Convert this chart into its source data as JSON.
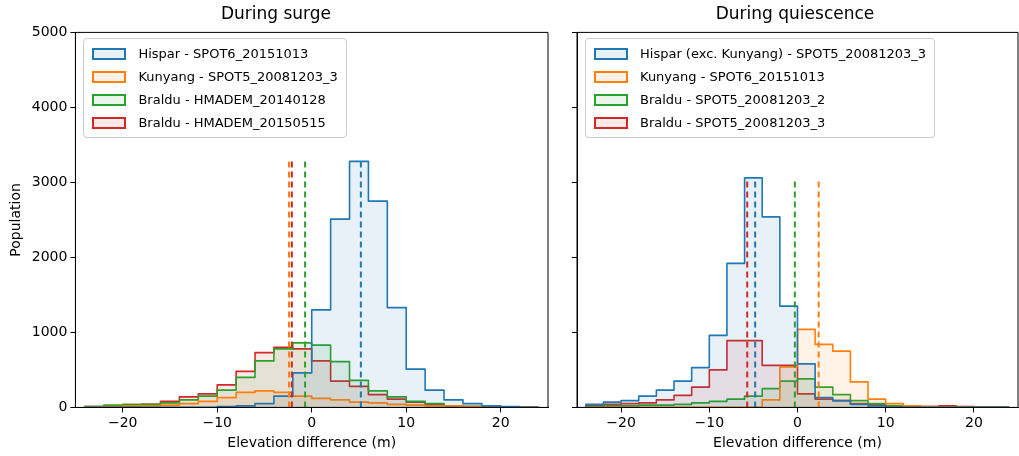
{
  "chart_data": [
    {
      "type": "histogram",
      "title": "During surge",
      "xlabel": "Elevation difference (m)",
      "ylabel": "Population",
      "legend": "top left",
      "grid": false,
      "bins": [
        -24,
        -22,
        -20,
        -18,
        -16,
        -14,
        -12,
        -10,
        -8,
        -6,
        -4,
        -2,
        0,
        2,
        4,
        6,
        8,
        10,
        12,
        14,
        16,
        18,
        20,
        22,
        24
      ],
      "series": [
        {
          "name": "Hispar - SPOT6_20151013",
          "color": "#1f77b4",
          "values": [
            0,
            0,
            0,
            0,
            0,
            0,
            0,
            10,
            20,
            50,
            150,
            460,
            1300,
            2510,
            3280,
            2750,
            1330,
            510,
            230,
            100,
            50,
            20,
            10,
            0
          ]
        },
        {
          "name": "Kunyang - SPOT5_20081203_3",
          "color": "#ff7f0e",
          "values": [
            0,
            10,
            20,
            20,
            30,
            50,
            80,
            130,
            200,
            220,
            200,
            150,
            120,
            100,
            70,
            60,
            40,
            30,
            20,
            20,
            10,
            10,
            0,
            0
          ]
        },
        {
          "name": "Braldu - HMADEM_20140128",
          "color": "#2ca02c",
          "values": [
            10,
            30,
            40,
            40,
            60,
            100,
            150,
            230,
            400,
            620,
            780,
            860,
            830,
            610,
            360,
            220,
            140,
            80,
            50,
            20,
            10,
            0,
            0,
            0
          ]
        },
        {
          "name": "Braldu - HMADEM_20150515",
          "color": "#d62728",
          "values": [
            10,
            20,
            20,
            40,
            80,
            140,
            180,
            300,
            480,
            730,
            800,
            780,
            620,
            350,
            280,
            170,
            110,
            70,
            40,
            20,
            10,
            0,
            0,
            0
          ]
        }
      ],
      "ref_lines": [
        {
          "axis": "x",
          "value": 5.2,
          "color": "#1f77b4",
          "line_style": "dashed"
        },
        {
          "axis": "x",
          "value": -2.4,
          "color": "#ff7f0e",
          "line_style": "dashed"
        },
        {
          "axis": "x",
          "value": -0.7,
          "color": "#2ca02c",
          "line_style": "dashed"
        },
        {
          "axis": "x",
          "value": -2.1,
          "color": "#d62728",
          "line_style": "dashed"
        }
      ],
      "xlim": [
        -25,
        25
      ],
      "xticks": [
        -20,
        -10,
        0,
        10,
        20
      ],
      "ylim": [
        0,
        5000
      ],
      "yticks": [
        0,
        1000,
        2000,
        3000,
        4000,
        5000
      ]
    },
    {
      "type": "histogram",
      "title": "During quiescence",
      "xlabel": "Elevation difference (m)",
      "legend": "top left",
      "grid": false,
      "tick_labels": "x",
      "bins": [
        -24,
        -22,
        -20,
        -18,
        -16,
        -14,
        -12,
        -10,
        -8,
        -6,
        -4,
        -2,
        0,
        2,
        4,
        6,
        8,
        10,
        12,
        14,
        16,
        18,
        20,
        22,
        24
      ],
      "series": [
        {
          "name": "Hispar (exc. Kunyang) - SPOT5_20081203_3",
          "color": "#1f77b4",
          "values": [
            40,
            70,
            90,
            150,
            230,
            350,
            530,
            960,
            1920,
            3060,
            2540,
            1350,
            580,
            130,
            90,
            40,
            20,
            0,
            0,
            0,
            0,
            0,
            0,
            0
          ]
        },
        {
          "name": "Kunyang - SPOT6_20151013",
          "color": "#ff7f0e",
          "values": [
            0,
            0,
            0,
            0,
            0,
            0,
            0,
            0,
            0,
            0,
            100,
            540,
            1040,
            840,
            750,
            340,
            110,
            50,
            20,
            10,
            0,
            0,
            0,
            0
          ]
        },
        {
          "name": "Braldu - SPOT5_20081203_2",
          "color": "#2ca02c",
          "values": [
            10,
            20,
            20,
            30,
            30,
            40,
            60,
            80,
            110,
            150,
            250,
            350,
            380,
            270,
            170,
            90,
            50,
            20,
            10,
            0,
            0,
            0,
            0,
            0
          ]
        },
        {
          "name": "Braldu - SPOT5_20081203_3",
          "color": "#d62728",
          "values": [
            20,
            40,
            50,
            60,
            100,
            160,
            270,
            500,
            890,
            890,
            560,
            560,
            180,
            110,
            90,
            50,
            40,
            20,
            10,
            10,
            20,
            10,
            0,
            0
          ]
        }
      ],
      "ref_lines": [
        {
          "axis": "x",
          "value": -4.8,
          "color": "#1f77b4",
          "line_style": "dashed"
        },
        {
          "axis": "x",
          "value": 2.4,
          "color": "#ff7f0e",
          "line_style": "dashed"
        },
        {
          "axis": "x",
          "value": -0.3,
          "color": "#2ca02c",
          "line_style": "dashed"
        },
        {
          "axis": "x",
          "value": -5.7,
          "color": "#d62728",
          "line_style": "dashed"
        }
      ],
      "xlim": [
        -25,
        25
      ],
      "xticks": [
        -20,
        -10,
        0,
        10,
        20
      ],
      "ylim": [
        0,
        5000
      ],
      "yticks": [
        0,
        1000,
        2000,
        3000,
        4000,
        5000
      ]
    }
  ]
}
